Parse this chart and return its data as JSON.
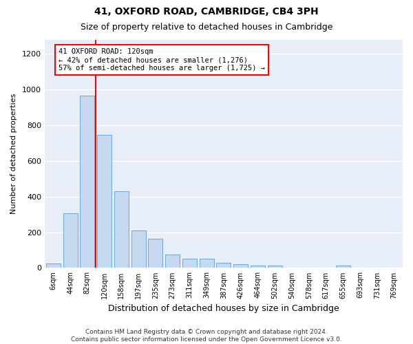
{
  "title": "41, OXFORD ROAD, CAMBRIDGE, CB4 3PH",
  "subtitle": "Size of property relative to detached houses in Cambridge",
  "xlabel": "Distribution of detached houses by size in Cambridge",
  "ylabel": "Number of detached properties",
  "categories": [
    "6sqm",
    "44sqm",
    "82sqm",
    "120sqm",
    "158sqm",
    "197sqm",
    "235sqm",
    "273sqm",
    "311sqm",
    "349sqm",
    "387sqm",
    "426sqm",
    "464sqm",
    "502sqm",
    "540sqm",
    "578sqm",
    "617sqm",
    "655sqm",
    "693sqm",
    "731sqm",
    "769sqm"
  ],
  "values": [
    25,
    305,
    965,
    745,
    430,
    210,
    165,
    75,
    50,
    50,
    30,
    20,
    15,
    15,
    0,
    0,
    0,
    15,
    0,
    0,
    0
  ],
  "bar_color": "#c5d8f0",
  "bar_edge_color": "#6aaad4",
  "bar_width": 0.85,
  "vline_color": "red",
  "annotation_text": "41 OXFORD ROAD: 120sqm\n← 42% of detached houses are smaller (1,276)\n57% of semi-detached houses are larger (1,725) →",
  "annotation_box_color": "white",
  "annotation_box_edge_color": "red",
  "ylim": [
    0,
    1280
  ],
  "yticks": [
    0,
    200,
    400,
    600,
    800,
    1000,
    1200
  ],
  "footer_text": "Contains HM Land Registry data © Crown copyright and database right 2024.\nContains public sector information licensed under the Open Government Licence v3.0.",
  "fig_background": "white",
  "axes_background": "#e8eef8",
  "grid_color": "white",
  "title_fontsize": 10,
  "subtitle_fontsize": 9
}
